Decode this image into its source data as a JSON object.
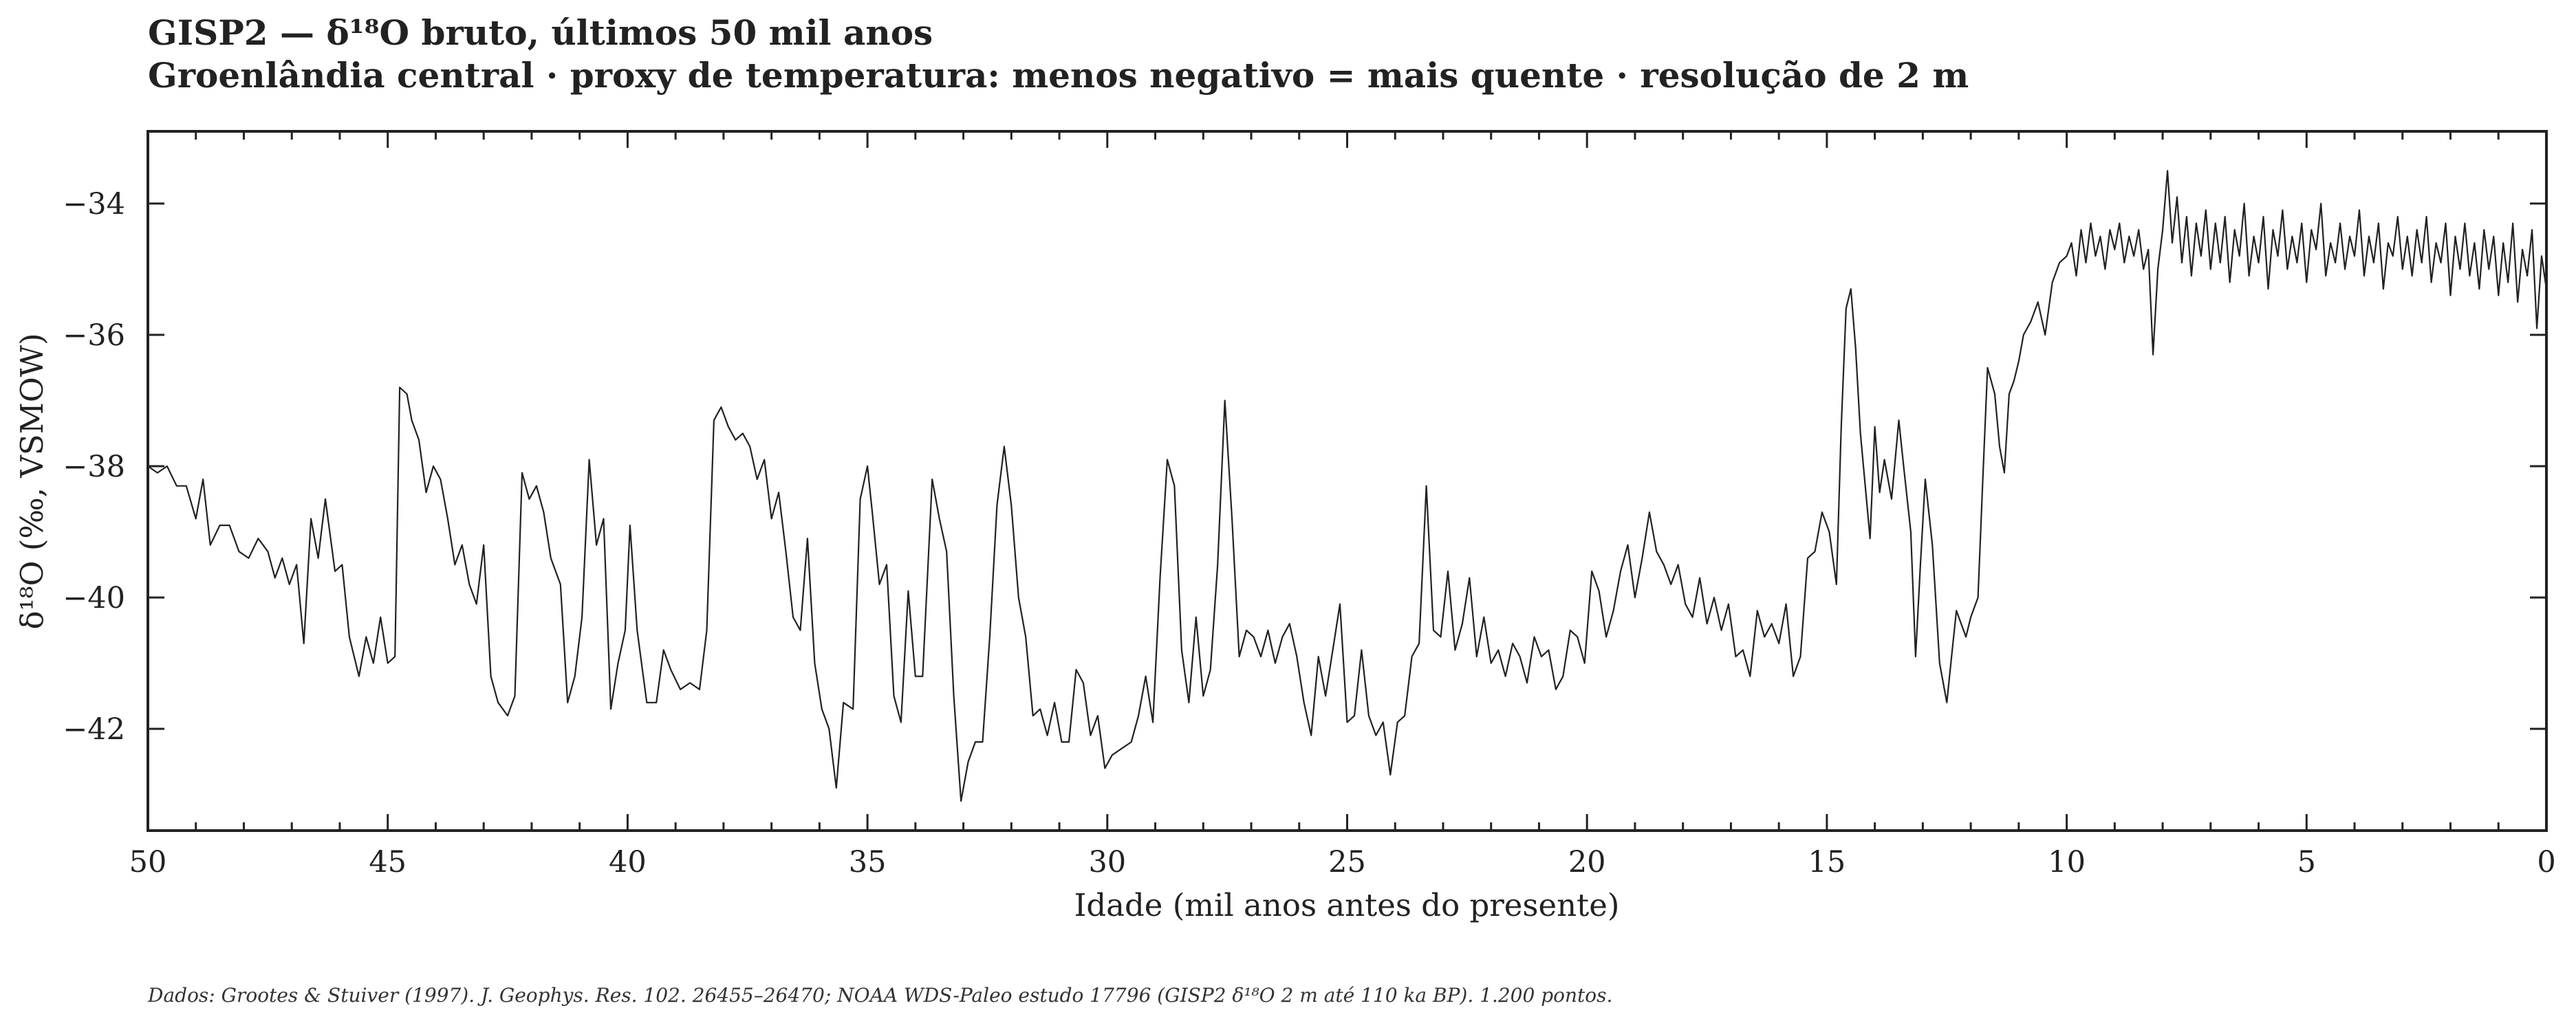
{
  "chart_data": {
    "type": "line",
    "title": "GISP2 — δ¹⁸O bruto, últimos 50 mil anos",
    "subtitle": "Groenlândia central · proxy de temperatura: menos negativo = mais quente · resolução de 2 m",
    "xlabel": "Idade (mil anos antes do presente)",
    "ylabel": "δ¹⁸O (‰, VSMOW)",
    "footnote": "Dados: Grootes & Stuiver (1997). J. Geophys. Res. 102. 26455–26470; NOAA WDS-Paleo estudo 17796 (GISP2 δ¹⁸O 2 m até 110 ka BP). 1.200 pontos.",
    "color": "#222222",
    "xlim": [
      50,
      0
    ],
    "ylim": [
      -43.55,
      -32.9
    ],
    "xticks": [
      50,
      45,
      40,
      35,
      30,
      25,
      20,
      15,
      10,
      5,
      0
    ],
    "xminorticks": [
      49,
      48,
      47,
      46,
      44,
      43,
      42,
      41,
      39,
      38,
      37,
      36,
      34,
      33,
      32,
      31,
      29,
      28,
      27,
      26,
      24,
      23,
      22,
      21,
      19,
      18,
      17,
      16,
      14,
      13,
      12,
      11,
      9,
      8,
      7,
      6,
      4,
      3,
      2,
      1
    ],
    "yticks": [
      {
        "value": -42,
        "label": "−42"
      },
      {
        "value": -40,
        "label": "−40"
      },
      {
        "value": -38,
        "label": "−38"
      },
      {
        "value": -36,
        "label": "−36"
      },
      {
        "value": -34,
        "label": "−34"
      }
    ],
    "x": [
      50,
      49.8,
      49.6,
      49.4,
      49.2,
      49.0,
      48.85,
      48.7,
      48.5,
      48.3,
      48.1,
      47.9,
      47.7,
      47.5,
      47.35,
      47.2,
      47.05,
      46.9,
      46.75,
      46.6,
      46.45,
      46.3,
      46.1,
      45.95,
      45.8,
      45.6,
      45.45,
      45.3,
      45.15,
      45.0,
      44.85,
      44.75,
      44.6,
      44.5,
      44.35,
      44.2,
      44.05,
      43.9,
      43.75,
      43.6,
      43.45,
      43.3,
      43.15,
      43.0,
      42.85,
      42.7,
      42.5,
      42.35,
      42.2,
      42.05,
      41.9,
      41.75,
      41.6,
      41.4,
      41.25,
      41.1,
      40.95,
      40.8,
      40.65,
      40.5,
      40.35,
      40.2,
      40.05,
      39.95,
      39.8,
      39.6,
      39.4,
      39.25,
      39.1,
      38.9,
      38.7,
      38.5,
      38.35,
      38.2,
      38.05,
      37.9,
      37.75,
      37.6,
      37.45,
      37.3,
      37.15,
      37.0,
      36.85,
      36.7,
      36.55,
      36.4,
      36.25,
      36.1,
      35.95,
      35.8,
      35.65,
      35.5,
      35.3,
      35.15,
      35.0,
      34.9,
      34.75,
      34.6,
      34.45,
      34.3,
      34.15,
      34.0,
      33.85,
      33.65,
      33.5,
      33.35,
      33.2,
      33.05,
      32.9,
      32.75,
      32.6,
      32.45,
      32.3,
      32.15,
      32.0,
      31.85,
      31.7,
      31.55,
      31.4,
      31.25,
      31.1,
      30.95,
      30.8,
      30.65,
      30.5,
      30.35,
      30.2,
      30.05,
      29.9,
      29.7,
      29.5,
      29.35,
      29.2,
      29.05,
      28.9,
      28.75,
      28.6,
      28.45,
      28.3,
      28.15,
      28.0,
      27.85,
      27.7,
      27.55,
      27.4,
      27.25,
      27.1,
      26.95,
      26.8,
      26.65,
      26.5,
      26.35,
      26.2,
      26.05,
      25.9,
      25.75,
      25.6,
      25.45,
      25.3,
      25.15,
      25.0,
      24.85,
      24.7,
      24.55,
      24.4,
      24.25,
      24.1,
      23.95,
      23.8,
      23.65,
      23.5,
      23.35,
      23.2,
      23.05,
      22.9,
      22.75,
      22.6,
      22.45,
      22.3,
      22.15,
      22.0,
      21.85,
      21.7,
      21.55,
      21.4,
      21.25,
      21.1,
      20.95,
      20.8,
      20.65,
      20.5,
      20.35,
      20.2,
      20.05,
      19.9,
      19.75,
      19.6,
      19.45,
      19.3,
      19.15,
      19.0,
      18.85,
      18.7,
      18.55,
      18.4,
      18.25,
      18.1,
      17.95,
      17.8,
      17.65,
      17.5,
      17.35,
      17.2,
      17.05,
      16.9,
      16.75,
      16.6,
      16.45,
      16.3,
      16.15,
      16.0,
      15.85,
      15.7,
      15.55,
      15.4,
      15.25,
      15.1,
      14.95,
      14.8,
      14.7,
      14.6,
      14.5,
      14.4,
      14.3,
      14.2,
      14.1,
      14.0,
      13.9,
      13.8,
      13.65,
      13.5,
      13.4,
      13.25,
      13.15,
      13.05,
      12.95,
      12.8,
      12.65,
      12.5,
      12.4,
      12.3,
      12.2,
      12.1,
      12.0,
      11.85,
      11.75,
      11.65,
      11.5,
      11.4,
      11.3,
      11.2,
      11.1,
      11.0,
      10.9,
      10.75,
      10.6,
      10.45,
      10.3,
      10.15,
      10.0,
      9.9,
      9.8,
      9.7,
      9.6,
      9.5,
      9.4,
      9.3,
      9.2,
      9.1,
      9.0,
      8.9,
      8.8,
      8.7,
      8.6,
      8.5,
      8.4,
      8.3,
      8.2,
      8.1,
      8.0,
      7.9,
      7.8,
      7.7,
      7.6,
      7.5,
      7.4,
      7.3,
      7.2,
      7.1,
      7.0,
      6.9,
      6.8,
      6.7,
      6.6,
      6.5,
      6.4,
      6.3,
      6.2,
      6.1,
      6.0,
      5.9,
      5.8,
      5.7,
      5.6,
      5.5,
      5.4,
      5.3,
      5.2,
      5.1,
      5.0,
      4.9,
      4.8,
      4.7,
      4.6,
      4.5,
      4.4,
      4.3,
      4.2,
      4.1,
      4.0,
      3.9,
      3.8,
      3.7,
      3.6,
      3.5,
      3.4,
      3.3,
      3.2,
      3.1,
      3.0,
      2.9,
      2.8,
      2.7,
      2.6,
      2.5,
      2.4,
      2.3,
      2.2,
      2.1,
      2.0,
      1.9,
      1.8,
      1.7,
      1.6,
      1.5,
      1.4,
      1.3,
      1.2,
      1.1,
      1.0,
      0.9,
      0.8,
      0.7,
      0.6,
      0.5,
      0.4,
      0.3,
      0.2,
      0.1,
      0.0
    ],
    "values": [
      -38.0,
      -38.1,
      -38.0,
      -38.3,
      -38.3,
      -38.8,
      -38.2,
      -39.2,
      -38.9,
      -38.9,
      -39.3,
      -39.4,
      -39.1,
      -39.3,
      -39.7,
      -39.4,
      -39.8,
      -39.5,
      -40.7,
      -38.8,
      -39.4,
      -38.5,
      -39.6,
      -39.5,
      -40.6,
      -41.2,
      -40.6,
      -41.0,
      -40.3,
      -41.0,
      -40.9,
      -36.8,
      -36.9,
      -37.3,
      -37.6,
      -38.4,
      -38.0,
      -38.2,
      -38.8,
      -39.5,
      -39.2,
      -39.8,
      -40.1,
      -39.2,
      -41.2,
      -41.6,
      -41.8,
      -41.5,
      -38.1,
      -38.5,
      -38.3,
      -38.7,
      -39.4,
      -39.8,
      -41.6,
      -41.2,
      -40.3,
      -37.9,
      -39.2,
      -38.8,
      -41.7,
      -41.0,
      -40.5,
      -38.9,
      -40.5,
      -41.6,
      -41.6,
      -40.8,
      -41.1,
      -41.4,
      -41.3,
      -41.4,
      -40.5,
      -37.3,
      -37.1,
      -37.4,
      -37.6,
      -37.5,
      -37.7,
      -38.2,
      -37.9,
      -38.8,
      -38.4,
      -39.3,
      -40.3,
      -40.5,
      -39.1,
      -41.0,
      -41.7,
      -42.0,
      -42.9,
      -41.6,
      -41.7,
      -38.5,
      -38.0,
      -38.7,
      -39.8,
      -39.5,
      -41.5,
      -41.9,
      -39.9,
      -41.2,
      -41.2,
      -38.2,
      -38.8,
      -39.3,
      -41.5,
      -43.1,
      -42.5,
      -42.2,
      -42.2,
      -40.6,
      -38.6,
      -37.7,
      -38.6,
      -40.0,
      -40.6,
      -41.8,
      -41.7,
      -42.1,
      -41.6,
      -42.2,
      -42.2,
      -41.1,
      -41.3,
      -42.1,
      -41.8,
      -42.6,
      -42.4,
      -42.3,
      -42.2,
      -41.8,
      -41.2,
      -41.9,
      -39.7,
      -37.9,
      -38.3,
      -40.8,
      -41.6,
      -40.3,
      -41.5,
      -41.1,
      -39.5,
      -37.0,
      -38.8,
      -40.9,
      -40.5,
      -40.6,
      -40.9,
      -40.5,
      -41.0,
      -40.6,
      -40.4,
      -40.9,
      -41.6,
      -42.1,
      -40.9,
      -41.5,
      -40.8,
      -40.1,
      -41.9,
      -41.8,
      -40.8,
      -41.8,
      -42.1,
      -41.9,
      -42.7,
      -41.9,
      -41.8,
      -40.9,
      -40.7,
      -38.3,
      -40.5,
      -40.6,
      -39.6,
      -40.8,
      -40.4,
      -39.7,
      -40.9,
      -40.3,
      -41.0,
      -40.8,
      -41.2,
      -40.7,
      -40.9,
      -41.3,
      -40.6,
      -40.9,
      -40.8,
      -41.4,
      -41.2,
      -40.5,
      -40.6,
      -41.0,
      -39.6,
      -39.9,
      -40.6,
      -40.2,
      -39.6,
      -39.2,
      -40.0,
      -39.4,
      -38.7,
      -39.3,
      -39.5,
      -39.8,
      -39.5,
      -40.1,
      -40.3,
      -39.7,
      -40.4,
      -40.0,
      -40.5,
      -40.1,
      -40.9,
      -40.8,
      -41.2,
      -40.2,
      -40.6,
      -40.4,
      -40.7,
      -40.1,
      -41.2,
      -40.9,
      -39.4,
      -39.3,
      -38.7,
      -39.0,
      -39.8,
      -37.4,
      -35.6,
      -35.3,
      -36.2,
      -37.5,
      -38.3,
      -39.1,
      -37.4,
      -38.4,
      -37.9,
      -38.5,
      -37.3,
      -38.0,
      -39.0,
      -40.9,
      -39.5,
      -38.2,
      -39.2,
      -41.0,
      -41.6,
      -40.9,
      -40.2,
      -40.4,
      -40.6,
      -40.3,
      -40.0,
      -38.2,
      -36.5,
      -36.9,
      -37.7,
      -38.1,
      -36.9,
      -36.7,
      -36.4,
      -36.0,
      -35.8,
      -35.5,
      -36.0,
      -35.2,
      -34.9,
      -34.8,
      -34.6,
      -35.1,
      -34.4,
      -34.9,
      -34.3,
      -34.8,
      -34.5,
      -35.0,
      -34.4,
      -34.7,
      -34.3,
      -34.9,
      -34.5,
      -34.8,
      -34.4,
      -35.0,
      -34.7,
      -36.3,
      -35.0,
      -34.4,
      -33.5,
      -34.6,
      -33.9,
      -34.9,
      -34.2,
      -35.1,
      -34.3,
      -34.8,
      -34.1,
      -35.0,
      -34.3,
      -34.9,
      -34.2,
      -35.2,
      -34.4,
      -34.8,
      -34.0,
      -35.1,
      -34.5,
      -34.9,
      -34.2,
      -35.3,
      -34.4,
      -34.8,
      -34.1,
      -35.0,
      -34.5,
      -34.9,
      -34.3,
      -35.2,
      -34.4,
      -34.7,
      -34.0,
      -35.1,
      -34.6,
      -34.9,
      -34.3,
      -35.0,
      -34.5,
      -34.8,
      -34.1,
      -35.1,
      -34.5,
      -34.9,
      -34.3,
      -35.3,
      -34.6,
      -34.8,
      -34.2,
      -35.0,
      -34.5,
      -35.1,
      -34.4,
      -34.9,
      -34.2,
      -35.2,
      -34.6,
      -34.9,
      -34.3,
      -35.4,
      -34.5,
      -35.0,
      -34.3,
      -35.1,
      -34.6,
      -35.3,
      -34.4,
      -35.0,
      -34.5,
      -35.4,
      -34.6,
      -35.2,
      -34.3,
      -35.5,
      -34.7,
      -35.1,
      -34.4,
      -35.9,
      -34.8,
      -35.3
    ]
  }
}
